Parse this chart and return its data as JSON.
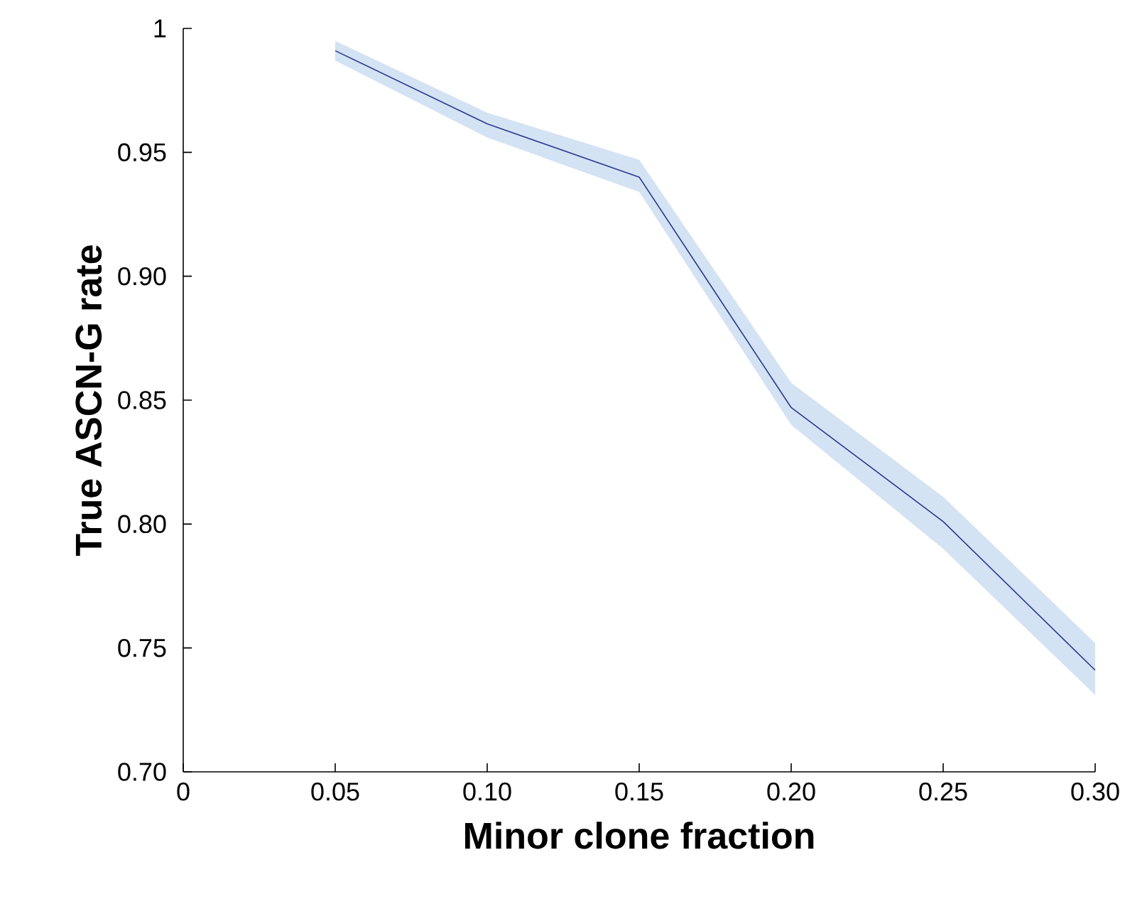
{
  "chart_data": {
    "type": "line",
    "xlabel": "Minor clone fraction",
    "ylabel": "True ASCN-G rate",
    "x": [
      0.05,
      0.1,
      0.15,
      0.2,
      0.25,
      0.3
    ],
    "series": [
      {
        "color": "#2b3990",
        "values": [
          0.991,
          0.9615,
          0.94,
          0.847,
          0.801,
          0.741
        ],
        "lower": [
          0.987,
          0.956,
          0.934,
          0.84,
          0.79,
          0.731
        ],
        "upper": [
          0.995,
          0.966,
          0.947,
          0.857,
          0.811,
          0.752
        ]
      }
    ],
    "xlim": [
      0,
      0.3
    ],
    "ylim": [
      0.7,
      1
    ],
    "xticks": [
      0,
      {
        "value": 0.05,
        "label": "0.05"
      },
      {
        "value": 0.1,
        "label": "0.10"
      },
      {
        "value": 0.15,
        "label": "0.15"
      },
      {
        "value": 0.2,
        "label": "0.20"
      },
      {
        "value": 0.25,
        "label": "0.25"
      },
      {
        "value": 0.3,
        "label": "0.30"
      }
    ],
    "yticks": [
      {
        "value": 0.7,
        "label": "0.70"
      },
      {
        "value": 0.75,
        "label": "0.75"
      },
      {
        "value": 0.8,
        "label": "0.80"
      },
      {
        "value": 0.85,
        "label": "0.85"
      },
      {
        "value": 0.9,
        "label": "0.90"
      },
      {
        "value": 0.95,
        "label": "0.95"
      },
      1
    ],
    "grid": false,
    "marker": "none",
    "line_style": "solid"
  }
}
